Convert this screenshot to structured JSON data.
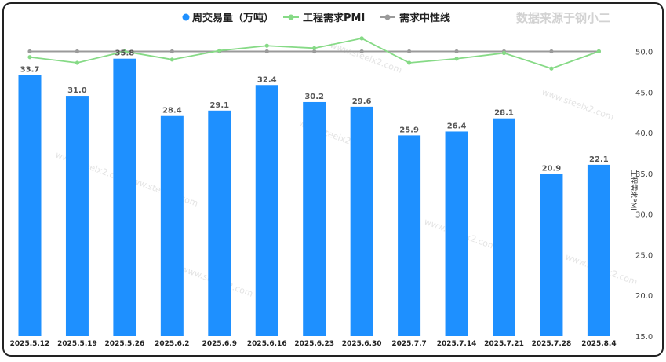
{
  "source_note": "数据来源于钢小二",
  "watermark": "www.steelx2.com",
  "chart_data": {
    "type": "bar",
    "categories": [
      "2025.5.12",
      "2025.5.19",
      "2025.5.26",
      "2025.6.2",
      "2025.6.9",
      "2025.6.16",
      "2025.6.23",
      "2025.6.30",
      "2025.7.7",
      "2025.7.14",
      "2025.7.21",
      "2025.7.28",
      "2025.8.4"
    ],
    "series": [
      {
        "name": "周交易量（万吨）",
        "type": "bar",
        "color": "#1E90FF",
        "values": [
          33.7,
          31.0,
          35.8,
          28.4,
          29.1,
          32.4,
          30.2,
          29.6,
          25.9,
          26.4,
          28.1,
          20.9,
          22.1
        ],
        "labels": [
          "33.7",
          "31.0",
          "35.8",
          "28.4",
          "29.1",
          "32.4",
          "30.2",
          "29.6",
          "25.9",
          "26.4",
          "28.1",
          "20.9",
          "22.1"
        ]
      },
      {
        "name": "工程需求PMI",
        "type": "line",
        "color": "#86DA86",
        "axis": "right",
        "values": [
          49.3,
          48.6,
          50.0,
          49.0,
          50.1,
          50.7,
          50.4,
          51.6,
          48.6,
          49.1,
          49.8,
          47.9,
          50.0
        ]
      },
      {
        "name": "需求中性线",
        "type": "line",
        "color": "#9A9A9A",
        "axis": "right",
        "values": [
          50,
          50,
          50,
          50,
          50,
          50,
          50,
          50,
          50,
          50,
          50,
          50,
          50
        ]
      }
    ],
    "left_axis": {
      "ylim": [
        0,
        38.1
      ],
      "ticks_shown": false
    },
    "right_axis": {
      "label": "工程需求PMI",
      "ylim": [
        15.0,
        51.3
      ],
      "ticks": [
        "15.0",
        "20.0",
        "25.0",
        "30.0",
        "35.0",
        "40.0",
        "45.0",
        "50.0"
      ]
    },
    "legend": "top-center",
    "grid": false
  }
}
